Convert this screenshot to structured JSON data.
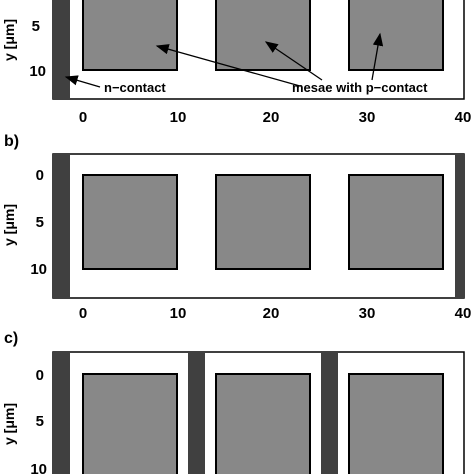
{
  "panels": [
    {
      "label": "",
      "ylabel": "y [μm]",
      "yticks": [
        "5",
        "10"
      ],
      "xticks": [
        "0",
        "10",
        "20",
        "30",
        "40"
      ],
      "contacts": [
        "left"
      ]
    },
    {
      "label": "b)",
      "ylabel": "y [μm]",
      "yticks": [
        "0",
        "5",
        "10"
      ],
      "xticks": [
        "0",
        "10",
        "20",
        "30",
        "40"
      ],
      "contacts": [
        "left",
        "right"
      ]
    },
    {
      "label": "c)",
      "ylabel": "y [μm]",
      "yticks": [
        "0",
        "5",
        "10"
      ],
      "xticks": [],
      "contacts": [
        "left",
        "gap1",
        "gap2"
      ]
    }
  ],
  "annotations": {
    "n_contact": "n−contact",
    "mesae": "mesae with p−contact"
  },
  "colors": {
    "mesa_fill": "#888888",
    "contact_fill": "#404040",
    "frame": "#000000"
  }
}
